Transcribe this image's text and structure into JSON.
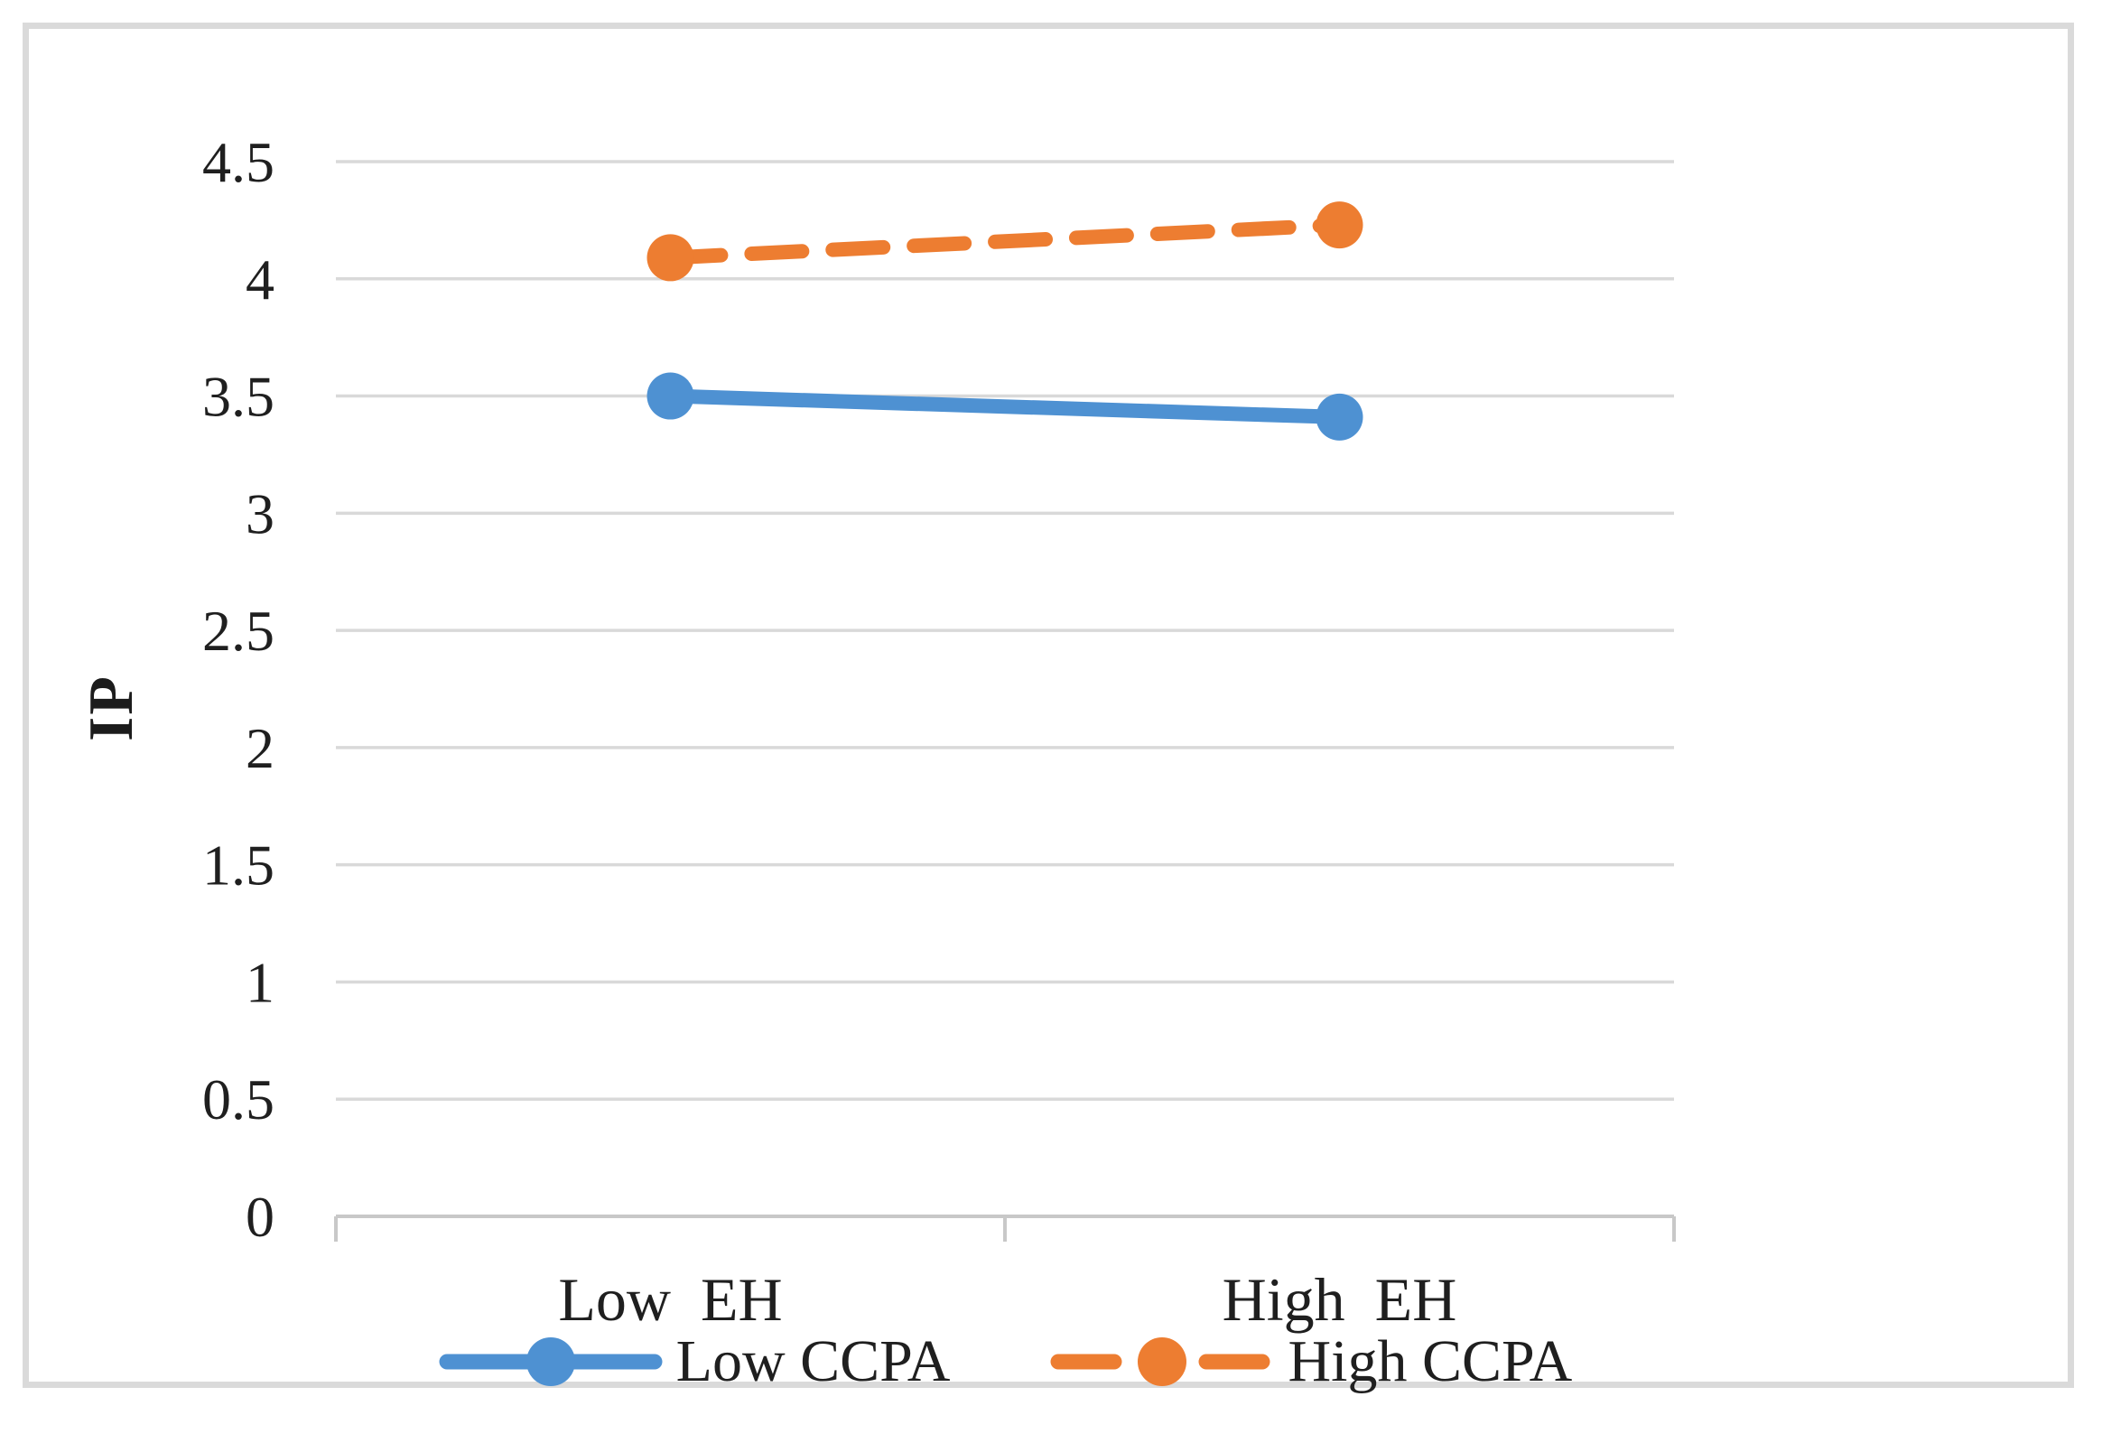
{
  "chart_data": {
    "type": "line",
    "title": "",
    "xlabel": "",
    "ylabel": "IP",
    "categories": [
      "Low EH",
      "High EH"
    ],
    "series": [
      {
        "name": "Low CCPA",
        "values": [
          3.5,
          3.41
        ],
        "color": "#4e91d2",
        "style": "solid",
        "marker": "circle"
      },
      {
        "name": "High CCPA",
        "values": [
          4.09,
          4.23
        ],
        "color": "#ed7d31",
        "style": "dashed",
        "marker": "circle"
      }
    ],
    "ylim": [
      0,
      4.5
    ],
    "ytick_step": 0.5,
    "yticks": [
      "0",
      "0.5",
      "1",
      "1.5",
      "2",
      "2.5",
      "3",
      "3.5",
      "4",
      "4.5"
    ],
    "grid": "horizontal",
    "legend_position": "bottom",
    "colors": {
      "gridline": "#d9d9d9",
      "axis": "#c8c8c8",
      "text": "#1f1f1f",
      "frame": "#dadada",
      "background": "#ffffff"
    }
  }
}
